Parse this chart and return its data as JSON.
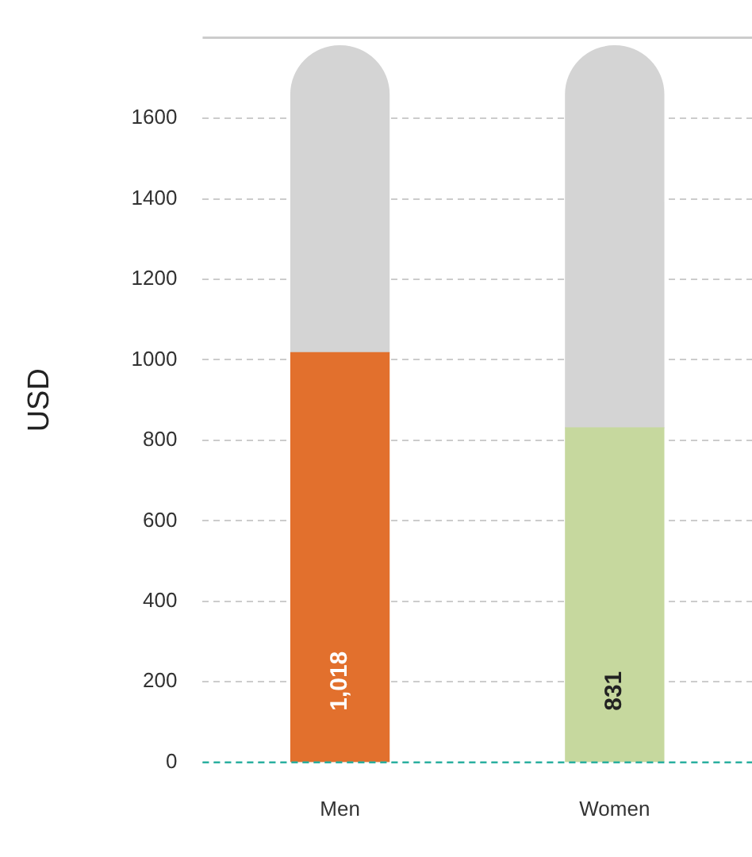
{
  "chart_data": {
    "type": "bar",
    "ylabel": "USD",
    "categories": [
      "Men",
      "Women"
    ],
    "stacked": true,
    "series": [
      {
        "colors": [
          "#e2702d",
          "#c6d89e"
        ],
        "values": [
          1018,
          831
        ],
        "value_labels": [
          "1,018",
          "831"
        ]
      },
      {
        "color": "#d4d4d4",
        "values": [
          762,
          949
        ]
      }
    ],
    "ylim": [
      0,
      1800
    ],
    "yticks": [
      0,
      200,
      400,
      600,
      800,
      1000,
      1200,
      1400,
      1600
    ],
    "grid": "y",
    "legend": false,
    "ref_lines": [
      {
        "axis": "y",
        "value": 0,
        "color": "#2ab0a0",
        "line_style": "dashed"
      }
    ]
  }
}
